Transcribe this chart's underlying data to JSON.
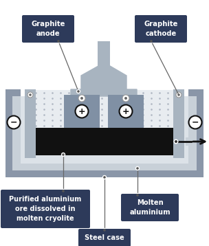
{
  "bg_color": "#ffffff",
  "gray1": "#8a96a8",
  "gray2": "#a8b4c0",
  "gray3": "#c8d0d8",
  "gray4": "#dce2e8",
  "electrolyte_color": "#e8ecf0",
  "dot_color": "#b0b8c4",
  "electrode_gray": "#8090a4",
  "black": "#111111",
  "white": "#ffffff",
  "label_bg": "#2d3a5a",
  "label_text": "#ffffff",
  "arrow_color": "#111111",
  "connector_line": "#666666",
  "labels": {
    "graphite_anode": "Graphite\nanode",
    "graphite_cathode": "Graphite\ncathode",
    "purified": "Purified aluminium\nore dissolved in\nmolten cryolite",
    "molten": "Molten\naluminium",
    "steel": "Steel case"
  }
}
